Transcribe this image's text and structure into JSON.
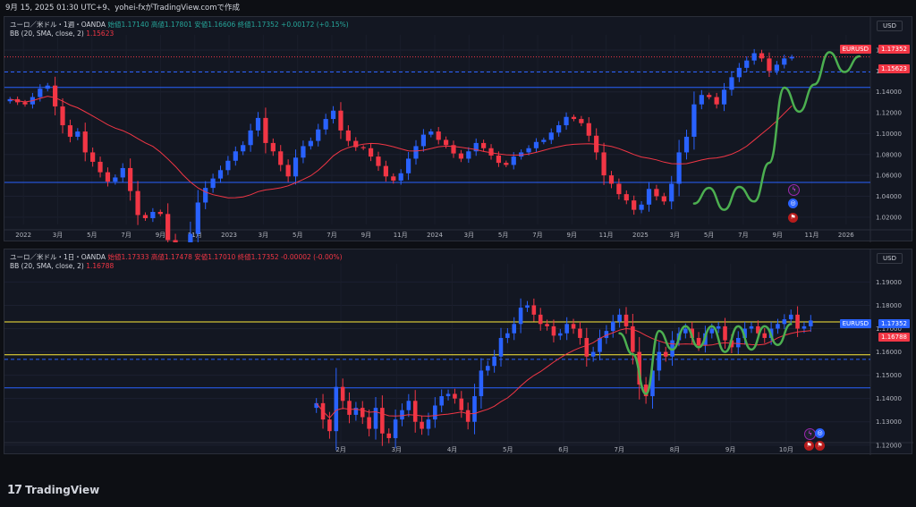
{
  "topbar": {
    "text": "9月 15, 2025 01:30 UTC+9、yohei-fxがTradingView.comで作成"
  },
  "footer": {
    "brand": "TradingView",
    "logo": "17"
  },
  "colors": {
    "up": "#26a69a",
    "down": "#f23645",
    "bull_candle": "#2962ff",
    "bear_candle": "#f23645",
    "bb": "#f23645",
    "zigzag": "#4caf50",
    "hline_blue": "#2962ff",
    "hline_yellow": "#ffeb3b",
    "tag_symbol": "#f23645",
    "tag_symbol2": "#2962ff"
  },
  "panes": [
    {
      "header": {
        "pair": "ユーロ／米ドル・1週・OANDA",
        "ohlc": "始値1.17140 高値1.17801 安値1.16606 終値1.17352 +0.00172 (+0.15%)",
        "indicator": "BB (20, SMA, close, 2)",
        "indicator_value": "1.15623"
      },
      "unit_label": "USD",
      "price_tag": {
        "symbol": "EURUSD",
        "value": "1.17352"
      },
      "bb_tag": "1.15623",
      "icons": [
        "lightning-icon",
        "globe-icon",
        "flag-icon"
      ]
    },
    {
      "header": {
        "pair": "ユーロ／米ドル・1日・OANDA",
        "ohlc": "始値1.17333 高値1.17478 安値1.17010 終値1.17352 -0.00002 (-0.00%)",
        "indicator": "BB (20, SMA, close, 2)",
        "indicator_value": "1.16788"
      },
      "unit_label": "USD",
      "price_tag": {
        "symbol": "EURUSD",
        "value": "1.17352"
      },
      "bb_tag": "1.16788",
      "icons": [
        "lightning-icon",
        "globe-icon",
        "flag-icon"
      ]
    }
  ],
  "chart_data": [
    {
      "type": "candlestick",
      "timeframe": "1W",
      "x_ticks": [
        "2022",
        "3月",
        "5月",
        "7月",
        "9月",
        "11月",
        "2023",
        "3月",
        "5月",
        "7月",
        "9月",
        "11月",
        "2024",
        "3月",
        "5月",
        "7月",
        "9月",
        "11月",
        "2025",
        "3月",
        "5月",
        "7月",
        "9月",
        "11月",
        "2026"
      ],
      "y_ticks": [
        "1.18000",
        "1.16000",
        "1.14000",
        "1.12000",
        "1.10000",
        "1.08000",
        "1.06000",
        "1.04000",
        "1.02000"
      ],
      "ylim": [
        1.013,
        1.186
      ],
      "close_series": [
        1.133,
        1.13,
        1.128,
        1.135,
        1.143,
        1.146,
        1.126,
        1.108,
        1.097,
        1.102,
        1.082,
        1.073,
        1.063,
        1.054,
        1.058,
        1.067,
        1.045,
        1.022,
        1.019,
        1.025,
        1.023,
        0.998,
        0.985,
        0.975,
        1.004,
        1.034,
        1.048,
        1.057,
        1.065,
        1.074,
        1.083,
        1.089,
        1.103,
        1.115,
        1.091,
        1.083,
        1.07,
        1.059,
        1.077,
        1.088,
        1.093,
        1.104,
        1.114,
        1.122,
        1.103,
        1.093,
        1.087,
        1.086,
        1.078,
        1.069,
        1.059,
        1.055,
        1.062,
        1.076,
        1.088,
        1.099,
        1.102,
        1.094,
        1.089,
        1.081,
        1.076,
        1.083,
        1.091,
        1.086,
        1.079,
        1.072,
        1.07,
        1.078,
        1.082,
        1.086,
        1.092,
        1.094,
        1.101,
        1.108,
        1.116,
        1.114,
        1.11,
        1.098,
        1.082,
        1.06,
        1.052,
        1.042,
        1.036,
        1.027,
        1.032,
        1.047,
        1.04,
        1.035,
        1.052,
        1.082,
        1.097,
        1.128,
        1.137,
        1.135,
        1.128,
        1.142,
        1.154,
        1.163,
        1.17,
        1.177,
        1.172,
        1.16,
        1.166,
        1.172,
        1.1735
      ],
      "bb_basis_hint": "SMA 20",
      "horizontal_lines": [
        {
          "price": 1.1735,
          "style": "dotted"
        },
        {
          "price": 1.159,
          "style": "dashed"
        },
        {
          "price": 1.1443,
          "style": "solid"
        },
        {
          "price": 1.0532,
          "style": "solid"
        }
      ],
      "zigzag": [
        {
          "i": 91,
          "v": 1.033
        },
        {
          "i": 93,
          "v": 1.048
        },
        {
          "i": 95,
          "v": 1.027
        },
        {
          "i": 97,
          "v": 1.049
        },
        {
          "i": 99,
          "v": 1.035
        },
        {
          "i": 101,
          "v": 1.072
        },
        {
          "i": 103,
          "v": 1.144
        },
        {
          "i": 105,
          "v": 1.121
        },
        {
          "i": 107,
          "v": 1.147
        },
        {
          "i": 109,
          "v": 1.178
        },
        {
          "i": 111,
          "v": 1.159
        },
        {
          "i": 113,
          "v": 1.174
        }
      ],
      "legend": "EURUSD 1.17352"
    },
    {
      "type": "candlestick",
      "timeframe": "1D",
      "x_ticks": [
        "2月",
        "3月",
        "4月",
        "5月",
        "6月",
        "7月",
        "8月",
        "9月",
        "10月"
      ],
      "y_ticks": [
        "1.19000",
        "1.18000",
        "1.17000",
        "1.16000",
        "1.15000",
        "1.14000",
        "1.13000",
        "1.12000"
      ],
      "ylim": [
        1.118,
        1.194
      ],
      "close_series": [
        1.138,
        1.131,
        1.126,
        1.145,
        1.139,
        1.133,
        1.136,
        1.132,
        1.127,
        1.136,
        1.125,
        1.123,
        1.131,
        1.135,
        1.139,
        1.13,
        1.127,
        1.131,
        1.137,
        1.141,
        1.142,
        1.14,
        1.135,
        1.13,
        1.141,
        1.152,
        1.154,
        1.158,
        1.166,
        1.168,
        1.172,
        1.179,
        1.18,
        1.176,
        1.172,
        1.171,
        1.167,
        1.168,
        1.172,
        1.17,
        1.166,
        1.158,
        1.16,
        1.166,
        1.169,
        1.173,
        1.176,
        1.171,
        1.16,
        1.146,
        1.141,
        1.152,
        1.16,
        1.158,
        1.165,
        1.168,
        1.17,
        1.166,
        1.163,
        1.168,
        1.17,
        1.171,
        1.165,
        1.162,
        1.166,
        1.17,
        1.171,
        1.168,
        1.166,
        1.17,
        1.172,
        1.174,
        1.176,
        1.17,
        1.171,
        1.1735
      ],
      "horizontal_lines": [
        {
          "price": 1.1729,
          "style": "solid-yellow"
        },
        {
          "price": 1.1588,
          "style": "solid-yellow"
        },
        {
          "price": 1.1568,
          "style": "dashed"
        },
        {
          "price": 1.1446,
          "style": "solid"
        }
      ],
      "zigzag": [
        {
          "i": 46,
          "v": 1.168
        },
        {
          "i": 48,
          "v": 1.159
        },
        {
          "i": 50,
          "v": 1.142
        },
        {
          "i": 52,
          "v": 1.169
        },
        {
          "i": 54,
          "v": 1.161
        },
        {
          "i": 56,
          "v": 1.171
        },
        {
          "i": 58,
          "v": 1.162
        },
        {
          "i": 60,
          "v": 1.171
        },
        {
          "i": 62,
          "v": 1.16
        },
        {
          "i": 64,
          "v": 1.171
        },
        {
          "i": 66,
          "v": 1.161
        },
        {
          "i": 68,
          "v": 1.171
        },
        {
          "i": 70,
          "v": 1.163
        },
        {
          "i": 72,
          "v": 1.172
        }
      ],
      "legend": "EURUSD 1.17352"
    }
  ]
}
